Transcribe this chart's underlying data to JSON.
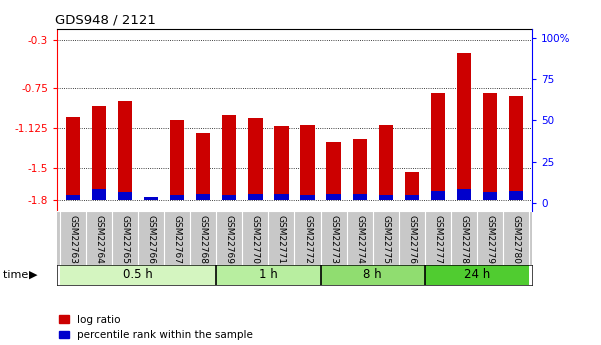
{
  "title": "GDS948 / 2121",
  "samples": [
    "GSM22763",
    "GSM22764",
    "GSM22765",
    "GSM22766",
    "GSM22767",
    "GSM22768",
    "GSM22769",
    "GSM22770",
    "GSM22771",
    "GSM22772",
    "GSM22773",
    "GSM22774",
    "GSM22775",
    "GSM22776",
    "GSM22777",
    "GSM22778",
    "GSM22779",
    "GSM22780"
  ],
  "log_ratio": [
    -1.02,
    -0.92,
    -0.87,
    -1.8,
    -1.05,
    -1.17,
    -1.0,
    -1.03,
    -1.1,
    -1.09,
    -1.25,
    -1.23,
    -1.09,
    -1.53,
    -0.8,
    -0.42,
    -0.8,
    -0.82
  ],
  "pct_rank": [
    3,
    7,
    5,
    2,
    3,
    4,
    3,
    4,
    4,
    3,
    4,
    4,
    3,
    3,
    6,
    7,
    5,
    6
  ],
  "groups": [
    {
      "label": "0.5 h",
      "start": 0,
      "end": 6,
      "color": "#d4f5c0"
    },
    {
      "label": "1 h",
      "start": 6,
      "end": 10,
      "color": "#b8eea0"
    },
    {
      "label": "8 h",
      "start": 10,
      "end": 14,
      "color": "#90dd70"
    },
    {
      "label": "24 h",
      "start": 14,
      "end": 18,
      "color": "#50cc30"
    }
  ],
  "ylim_left": [
    -1.9,
    -0.2
  ],
  "ylim_right": [
    -5,
    105
  ],
  "yticks_left": [
    -1.8,
    -1.5,
    -1.125,
    -0.75,
    -0.3
  ],
  "ytick_labels_left": [
    "-1.8",
    "-1.5",
    "-1.125",
    "-0.75",
    "-0.3"
  ],
  "yticks_right": [
    0,
    25,
    50,
    75,
    100
  ],
  "ytick_labels_right": [
    "0",
    "25",
    "50",
    "75",
    "100%"
  ],
  "bar_color_red": "#cc0000",
  "bar_color_blue": "#0000cc",
  "bg_color": "#ffffff",
  "plot_bg": "#ffffff",
  "xlabel_area_color": "#c8c8c8",
  "bar_width": 0.55
}
